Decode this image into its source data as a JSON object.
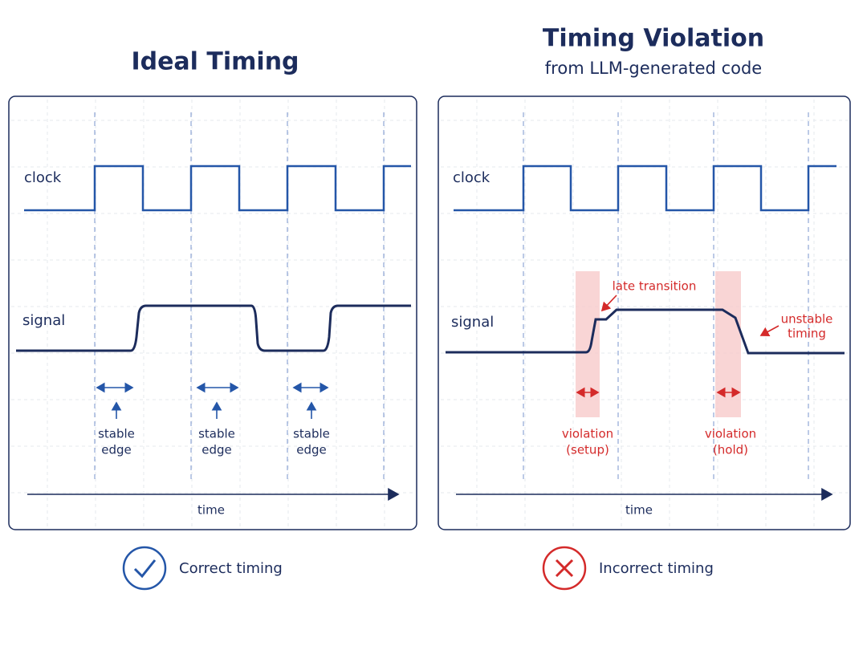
{
  "left": {
    "title": "Ideal Timing",
    "clock_label": "clock",
    "signal_label": "signal",
    "annotations": [
      {
        "lines": [
          "stable",
          "edge"
        ]
      },
      {
        "lines": [
          "stable",
          "edge"
        ]
      },
      {
        "lines": [
          "stable",
          "edge"
        ]
      }
    ],
    "axis_label": "time",
    "status": "Correct timing"
  },
  "right": {
    "title": "Timing Violation",
    "subtitle": "from LLM-generated code",
    "clock_label": "clock",
    "signal_label": "signal",
    "callouts": [
      {
        "lines": [
          "late transition"
        ]
      },
      {
        "lines": [
          "unstable",
          "timing"
        ]
      }
    ],
    "violations": [
      {
        "lines": [
          "violation",
          "(setup)"
        ]
      },
      {
        "lines": [
          "violation",
          "(hold)"
        ]
      }
    ],
    "axis_label": "time",
    "status": "Incorrect timing"
  }
}
